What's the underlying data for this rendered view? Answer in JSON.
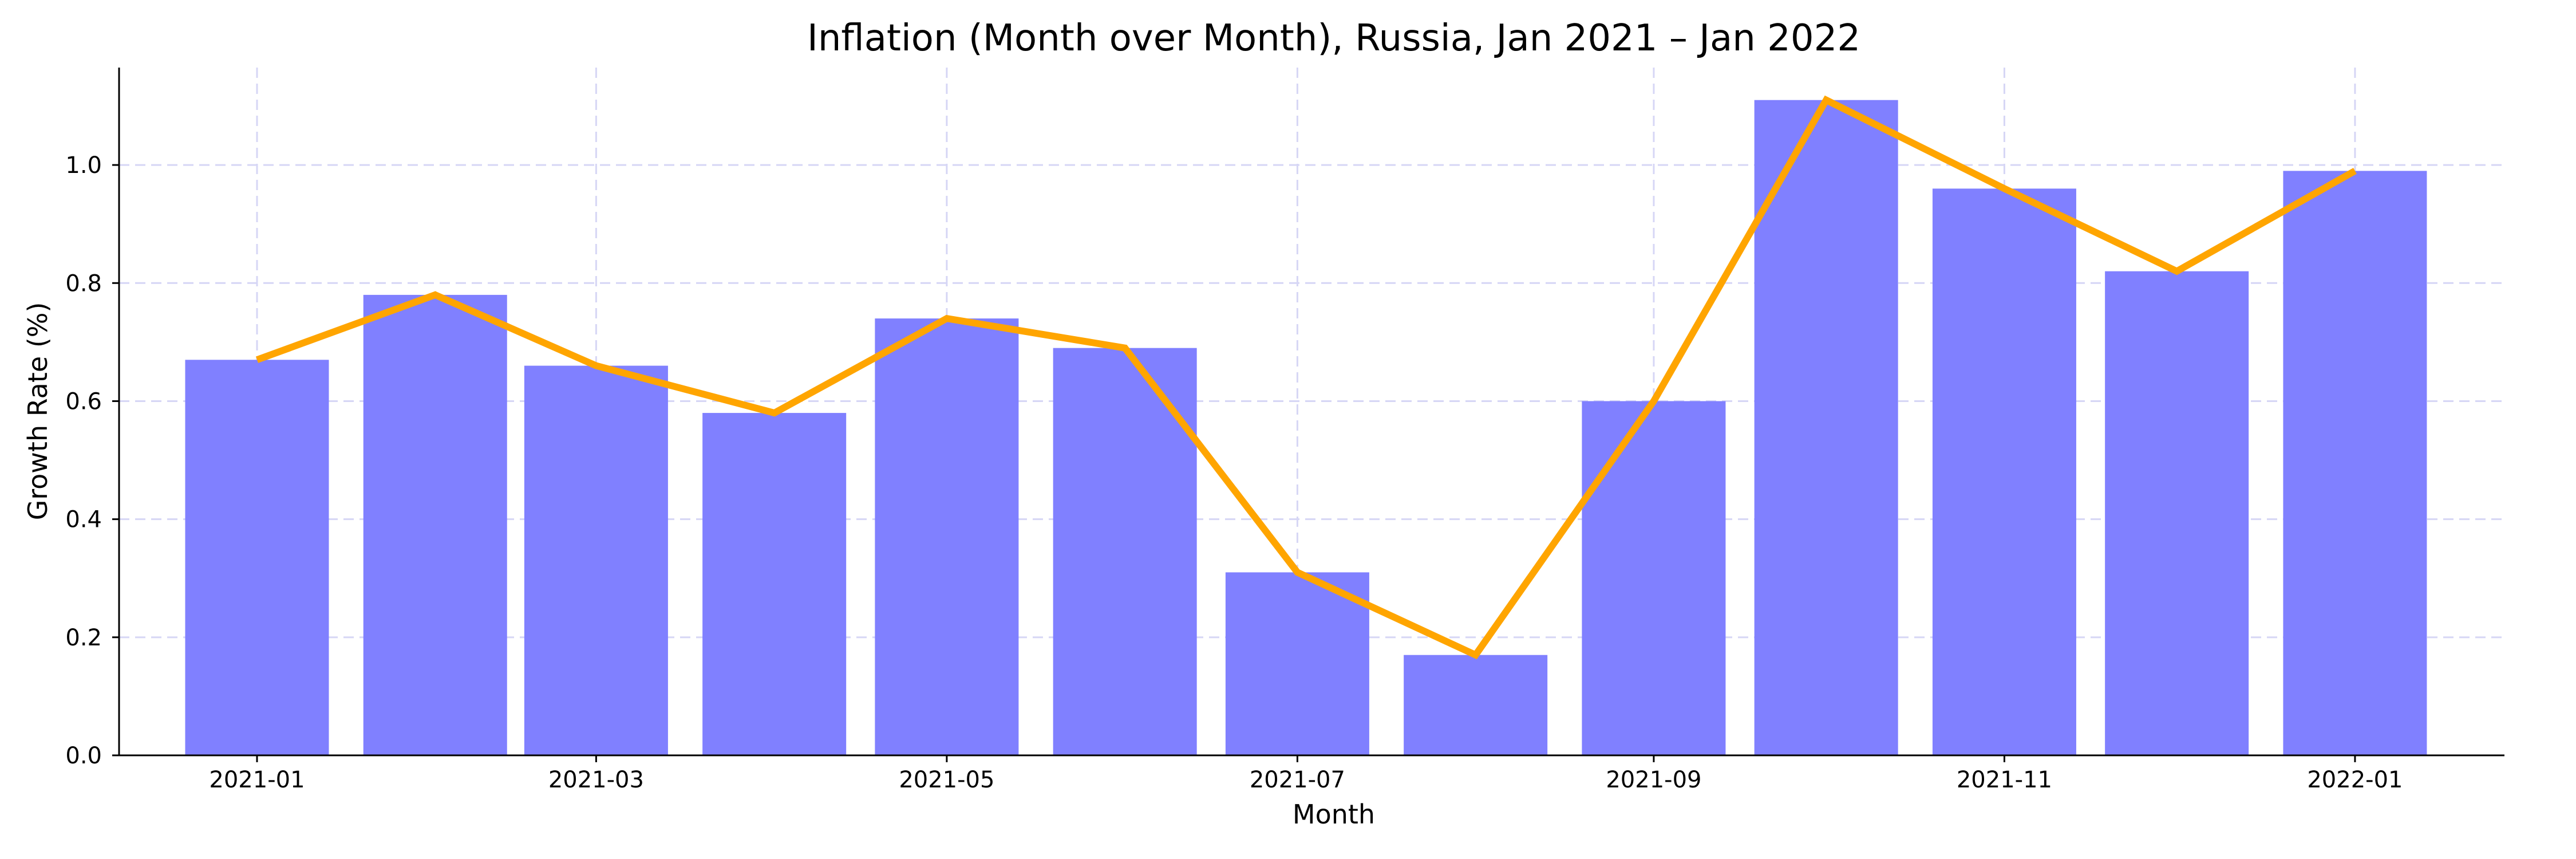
{
  "chart_data": {
    "type": "bar",
    "title": "Inflation (Month over Month), Russia, Jan 2021 – Jan 2022",
    "xlabel": "Month",
    "ylabel": "Growth Rate (%)",
    "categories": [
      "2021-01",
      "2021-02",
      "2021-03",
      "2021-04",
      "2021-05",
      "2021-06",
      "2021-07",
      "2021-08",
      "2021-09",
      "2021-10",
      "2021-11",
      "2021-12",
      "2022-01"
    ],
    "x_dates": [
      "2021-01-01",
      "2021-02-01",
      "2021-03-01",
      "2021-04-01",
      "2021-05-01",
      "2021-06-01",
      "2021-07-01",
      "2021-08-01",
      "2021-09-01",
      "2021-10-01",
      "2021-11-01",
      "2021-12-01",
      "2022-01-01"
    ],
    "values": [
      0.67,
      0.78,
      0.66,
      0.58,
      0.74,
      0.69,
      0.31,
      0.17,
      0.6,
      1.11,
      0.96,
      0.82,
      0.99
    ],
    "line_overlay": true,
    "ylim": [
      0,
      1.165
    ],
    "x_range": [
      "2020-12-08",
      "2022-01-27"
    ],
    "yticks": [
      0.0,
      0.2,
      0.4,
      0.6,
      0.8,
      1.0
    ],
    "ytick_labels": [
      "0.0",
      "0.2",
      "0.4",
      "0.6",
      "0.8",
      "1.0"
    ],
    "xticks": [
      "2021-01-01",
      "2021-03-01",
      "2021-05-01",
      "2021-07-01",
      "2021-09-01",
      "2021-11-01",
      "2022-01-01"
    ],
    "xtick_labels": [
      "2021-01",
      "2021-03",
      "2021-05",
      "2021-07",
      "2021-09",
      "2021-11",
      "2022-01"
    ],
    "grid": true,
    "colors": {
      "bar": "#8080ff",
      "line": "#ffa500",
      "grid": "#d6d6f5",
      "axis": "#000000"
    }
  }
}
